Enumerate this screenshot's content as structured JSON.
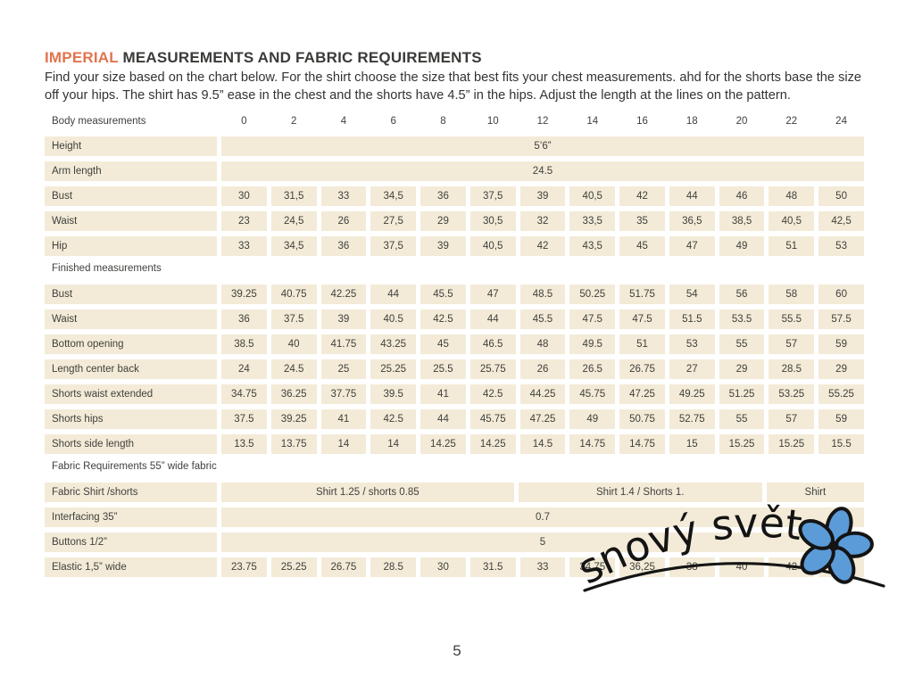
{
  "title": {
    "highlight": "IMPERIAL",
    "rest": " MEASUREMENTS AND FABRIC REQUIREMENTS"
  },
  "intro": "Find your size based on the chart below. For the shirt choose the size that best fits your chest measurements.  ahd for the shorts base the size off your hips. The shirt  has 9.5” ease in the chest and the shorts have 4.5” in the hips. Adjust the length at the lines on the pattern.",
  "page": {
    "number": "5"
  },
  "logo": {
    "text": "snový svět",
    "flower_color": "#5b9bd8",
    "ink_color": "#141414"
  },
  "colors": {
    "accent_orange": "#e2744d",
    "cell_beige": "#f3ebd7",
    "text": "#3f3f3d"
  },
  "table": {
    "header": {
      "label": "Body measurements",
      "sizes": [
        "0",
        "2",
        "4",
        "6",
        "8",
        "10",
        "12",
        "14",
        "16",
        "18",
        "20",
        "22",
        "24"
      ]
    },
    "rows": [
      {
        "type": "merged",
        "label": "Height",
        "value": "5’6”"
      },
      {
        "type": "merged",
        "label": "Arm length",
        "value": "24.5"
      },
      {
        "type": "values",
        "label": "Bust",
        "values": [
          "30",
          "31,5",
          "33",
          "34,5",
          "36",
          "37,5",
          "39",
          "40,5",
          "42",
          "44",
          "46",
          "48",
          "50"
        ]
      },
      {
        "type": "values",
        "label": "Waist",
        "values": [
          "23",
          "24,5",
          "26",
          "27,5",
          "29",
          "30,5",
          "32",
          "33,5",
          "35",
          "36,5",
          "38,5",
          "40,5",
          "42,5"
        ]
      },
      {
        "type": "values",
        "label": "Hip",
        "values": [
          "33",
          "34,5",
          "36",
          "37,5",
          "39",
          "40,5",
          "42",
          "43,5",
          "45",
          "47",
          "49",
          "51",
          "53"
        ]
      },
      {
        "type": "section",
        "label": "Finished measurements"
      },
      {
        "type": "values",
        "label": "Bust",
        "values": [
          "39.25",
          "40.75",
          "42.25",
          "44",
          "45.5",
          "47",
          "48.5",
          "50.25",
          "51.75",
          "54",
          "56",
          "58",
          "60"
        ]
      },
      {
        "type": "values",
        "label": "Waist",
        "values": [
          "36",
          "37.5",
          "39",
          "40.5",
          "42.5",
          "44",
          "45.5",
          "47.5",
          "47.5",
          "51.5",
          "53.5",
          "55.5",
          "57.5"
        ]
      },
      {
        "type": "values",
        "label": "Bottom opening",
        "values": [
          "38.5",
          "40",
          "41.75",
          "43.25",
          "45",
          "46.5",
          "48",
          "49.5",
          "51",
          "53",
          "55",
          "57",
          "59"
        ]
      },
      {
        "type": "values",
        "label": "Length center back",
        "values": [
          "24",
          "24.5",
          "25",
          "25.25",
          "25.5",
          "25.75",
          "26",
          "26.5",
          "26.75",
          "27",
          "29",
          "28.5",
          "29"
        ]
      },
      {
        "type": "values",
        "label": "Shorts waist extended",
        "values": [
          "34.75",
          "36.25",
          "37.75",
          "39.5",
          "41",
          "42.5",
          "44.25",
          "45.75",
          "47.25",
          "49.25",
          "51.25",
          "53.25",
          "55.25"
        ]
      },
      {
        "type": "values",
        "label": "Shorts hips",
        "values": [
          "37.5",
          "39.25",
          "41",
          "42.5",
          "44",
          "45.75",
          "47.25",
          "49",
          "50.75",
          "52.75",
          "55",
          "57",
          "59"
        ]
      },
      {
        "type": "values",
        "label": "Shorts side length",
        "values": [
          "13.5",
          "13.75",
          "14",
          "14",
          "14.25",
          "14.25",
          "14.5",
          "14.75",
          "14.75",
          "15",
          "15.25",
          "15.25",
          "15.5"
        ]
      },
      {
        "type": "section",
        "label": "Fabric Requirements 55” wide fabric"
      },
      {
        "type": "groups",
        "label": "Fabric Shirt /shorts",
        "groups": [
          {
            "span": 6,
            "text": "Shirt 1.25 / shorts 0.85"
          },
          {
            "span": 5,
            "text": "Shirt 1.4 / Shorts 1."
          },
          {
            "span": 2,
            "text": "Shirt"
          }
        ]
      },
      {
        "type": "merged",
        "label": "Interfacing 35”",
        "value": "0.7"
      },
      {
        "type": "merged",
        "label": "Buttons 1/2”",
        "value": "5"
      },
      {
        "type": "values",
        "label": "Elastic 1,5” wide",
        "values": [
          "23.75",
          "25.25",
          "26.75",
          "28.5",
          "30",
          "31.5",
          "33",
          "34.75",
          "36,25",
          "38",
          "40",
          "42",
          "44"
        ]
      }
    ]
  }
}
